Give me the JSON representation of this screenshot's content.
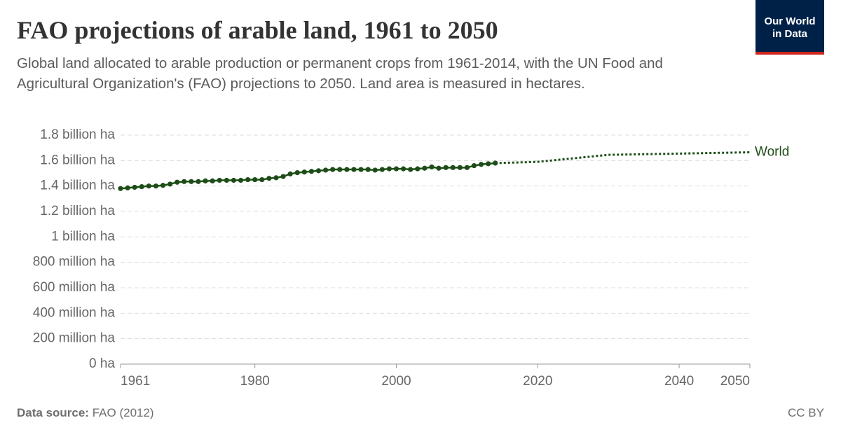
{
  "chart_data": {
    "type": "line",
    "title": "FAO projections of arable land, 1961 to 2050",
    "subtitle": "Global land allocated to arable production or permanent crops from 1961-2014, with the UN Food and Agricultural Organization's (FAO) projections to 2050. Land area is measured in hectares.",
    "source_label": "Data source:",
    "source": "FAO (2012)",
    "license": "CC BY",
    "logo": [
      "Our World",
      "in Data"
    ],
    "xlim": [
      1961,
      2050
    ],
    "xticks": [
      1961,
      1980,
      2000,
      2020,
      2040,
      2050
    ],
    "ylim": [
      0,
      1800000000
    ],
    "yticks": [
      {
        "value": 0,
        "label": "0 ha"
      },
      {
        "value": 200000000,
        "label": "200 million ha"
      },
      {
        "value": 400000000,
        "label": "400 million ha"
      },
      {
        "value": 600000000,
        "label": "600 million ha"
      },
      {
        "value": 800000000,
        "label": "800 million ha"
      },
      {
        "value": 1000000000,
        "label": "1 billion ha"
      },
      {
        "value": 1200000000,
        "label": "1.2 billion ha"
      },
      {
        "value": 1400000000,
        "label": "1.4 billion ha"
      },
      {
        "value": 1600000000,
        "label": "1.6 billion ha"
      },
      {
        "value": 1800000000,
        "label": "1.8 billion ha"
      }
    ],
    "grid": true,
    "series": [
      {
        "name": "World",
        "color": "#1d4d17",
        "x": [
          1961,
          1962,
          1963,
          1964,
          1965,
          1966,
          1967,
          1968,
          1969,
          1970,
          1971,
          1972,
          1973,
          1974,
          1975,
          1976,
          1977,
          1978,
          1979,
          1980,
          1981,
          1982,
          1983,
          1984,
          1985,
          1986,
          1987,
          1988,
          1989,
          1990,
          1991,
          1992,
          1993,
          1994,
          1995,
          1996,
          1997,
          1998,
          1999,
          2000,
          2001,
          2002,
          2003,
          2004,
          2005,
          2006,
          2007,
          2008,
          2009,
          2010,
          2011,
          2012,
          2013,
          2014
        ],
        "values": [
          1380000000,
          1385000000,
          1390000000,
          1395000000,
          1400000000,
          1400000000,
          1405000000,
          1415000000,
          1430000000,
          1435000000,
          1435000000,
          1435000000,
          1440000000,
          1440000000,
          1445000000,
          1445000000,
          1445000000,
          1445000000,
          1450000000,
          1450000000,
          1450000000,
          1460000000,
          1465000000,
          1475000000,
          1495000000,
          1505000000,
          1510000000,
          1515000000,
          1520000000,
          1525000000,
          1530000000,
          1530000000,
          1530000000,
          1530000000,
          1530000000,
          1530000000,
          1525000000,
          1530000000,
          1535000000,
          1535000000,
          1535000000,
          1530000000,
          1535000000,
          1540000000,
          1550000000,
          1540000000,
          1545000000,
          1545000000,
          1545000000,
          1545000000,
          1560000000,
          1570000000,
          1575000000,
          1580000000
        ],
        "projection": {
          "x": [
            2014,
            2020,
            2030,
            2040,
            2050
          ],
          "values": [
            1580000000,
            1590000000,
            1645000000,
            1655000000,
            1665000000
          ]
        }
      }
    ]
  }
}
